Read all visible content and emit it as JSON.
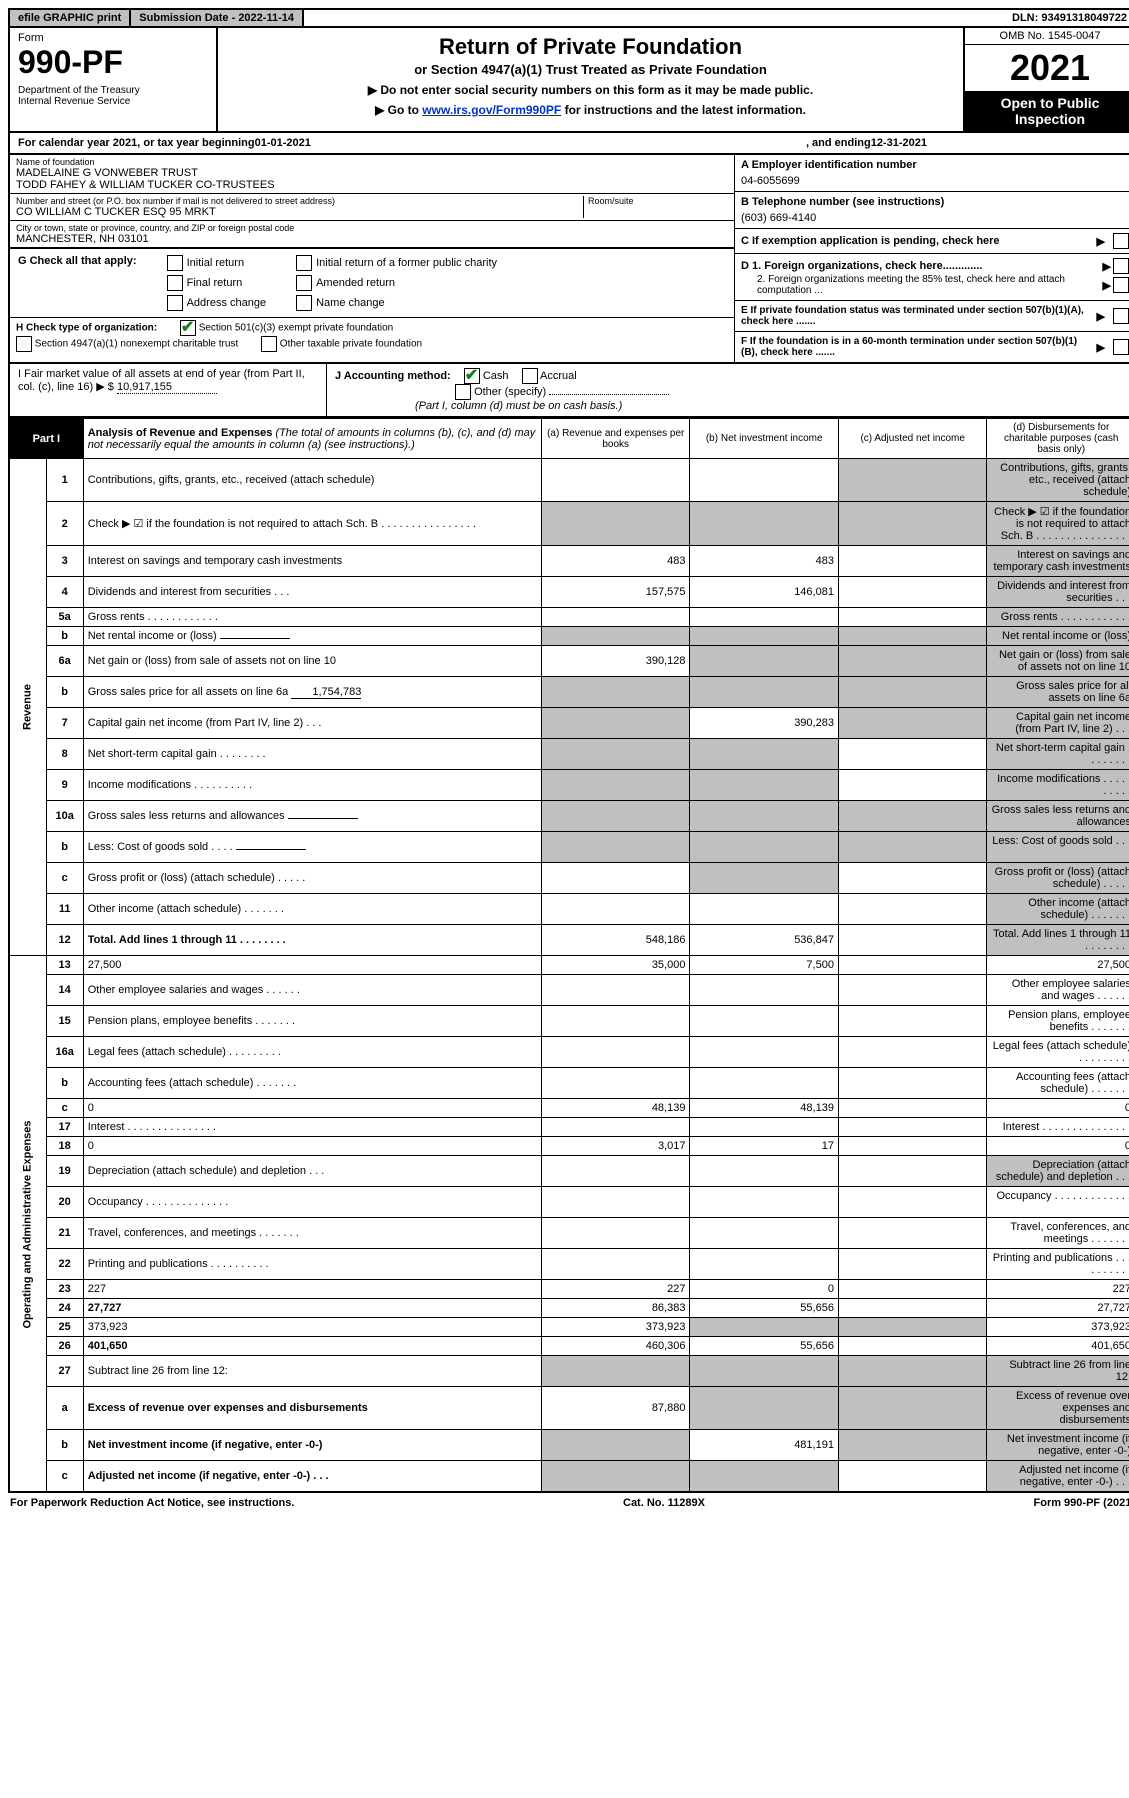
{
  "top": {
    "efile": "efile GRAPHIC print",
    "submission": "Submission Date - 2022-11-14",
    "dln": "DLN: 93491318049722"
  },
  "header": {
    "form": "Form",
    "formnum": "990-PF",
    "dept": "Department of the Treasury",
    "irs": "Internal Revenue Service",
    "title": "Return of Private Foundation",
    "sub": "or Section 4947(a)(1) Trust Treated as Private Foundation",
    "warn": "▶ Do not enter social security numbers on this form as it may be made public.",
    "goto": "▶ Go to ",
    "link": "www.irs.gov/Form990PF",
    "goto2": " for instructions and the latest information.",
    "omb": "OMB No. 1545-0047",
    "year": "2021",
    "open": "Open to Public Inspection"
  },
  "calyear": {
    "pre": "For calendar year 2021, or tax year beginning ",
    "begin": "01-01-2021",
    "mid": ", and ending ",
    "end": "12-31-2021"
  },
  "ident": {
    "name_lbl": "Name of foundation",
    "name1": "MADELAINE G VONWEBER TRUST",
    "name2": "TODD FAHEY & WILLIAM TUCKER CO-TRUSTEES",
    "addr_lbl": "Number and street (or P.O. box number if mail is not delivered to street address)",
    "addr": "CO WILLIAM C TUCKER ESQ 95 MRKT",
    "room_lbl": "Room/suite",
    "city_lbl": "City or town, state or province, country, and ZIP or foreign postal code",
    "city": "MANCHESTER, NH  03101",
    "ein_lbl": "A Employer identification number",
    "ein": "04-6055699",
    "tel_lbl": "B Telephone number (see instructions)",
    "tel": "(603) 669-4140",
    "c": "C If exemption application is pending, check here",
    "d1": "D 1. Foreign organizations, check here.............",
    "d2": "2. Foreign organizations meeting the 85% test, check here and attach computation ...",
    "e": "E  If private foundation status was terminated under section 507(b)(1)(A), check here .......",
    "f": "F  If the foundation is in a 60-month termination under section 507(b)(1)(B), check here .......",
    "g": "G Check all that apply:",
    "g_opts": [
      "Initial return",
      "Initial return of a former public charity",
      "Final return",
      "Amended return",
      "Address change",
      "Name change"
    ],
    "h": "H Check type of organization:",
    "h1": "Section 501(c)(3) exempt private foundation",
    "h2": "Section 4947(a)(1) nonexempt charitable trust",
    "h3": "Other taxable private foundation",
    "i": "I Fair market value of all assets at end of year (from Part II, col. (c), line 16) ▶ $",
    "i_val": "10,917,155",
    "j": "J Accounting method:",
    "j_cash": "Cash",
    "j_accr": "Accrual",
    "j_other": "Other (specify)",
    "j_note": "(Part I, column (d) must be on cash basis.)"
  },
  "part1": {
    "label": "Part I",
    "title": "Analysis of Revenue and Expenses",
    "note": " (The total of amounts in columns (b), (c), and (d) may not necessarily equal the amounts in column (a) (see instructions).)",
    "cols": {
      "a": "(a)   Revenue and expenses per books",
      "b": "(b)   Net investment income",
      "c": "(c)   Adjusted net income",
      "d": "(d)   Disbursements for charitable purposes (cash basis only)"
    }
  },
  "rows": [
    {
      "n": "1",
      "d": "Contributions, gifts, grants, etc., received (attach schedule)",
      "a": "",
      "b": "",
      "shade": [
        "c",
        "d"
      ]
    },
    {
      "n": "2",
      "d": "Check ▶ ☑ if the foundation is not required to attach Sch. B      .   .   .   .   .   .   .   .   .   .   .   .   .   .   .   .",
      "shade": [
        "a",
        "b",
        "c",
        "d"
      ]
    },
    {
      "n": "3",
      "d": "Interest on savings and temporary cash investments",
      "a": "483",
      "b": "483",
      "shade": [
        "d"
      ]
    },
    {
      "n": "4",
      "d": "Dividends and interest from securities      .   .   .",
      "a": "157,575",
      "b": "146,081",
      "shade": [
        "d"
      ]
    },
    {
      "n": "5a",
      "d": "Gross rents         .   .   .   .   .   .   .   .   .   .   .   .",
      "shade": [
        "d"
      ]
    },
    {
      "n": "b",
      "d": "Net rental income or (loss)",
      "under": "",
      "shade": [
        "a",
        "b",
        "c",
        "d"
      ]
    },
    {
      "n": "6a",
      "d": "Net gain or (loss) from sale of assets not on line 10",
      "a": "390,128",
      "shade": [
        "b",
        "c",
        "d"
      ]
    },
    {
      "n": "b",
      "d": "Gross sales price for all assets on line 6a",
      "under": "1,754,783",
      "shade": [
        "a",
        "b",
        "c",
        "d"
      ]
    },
    {
      "n": "7",
      "d": "Capital gain net income (from Part IV, line 2)     .   .   .",
      "b": "390,283",
      "shade": [
        "a",
        "c",
        "d"
      ]
    },
    {
      "n": "8",
      "d": "Net short-term capital gain    .   .   .   .   .   .   .   .",
      "shade": [
        "a",
        "b",
        "d"
      ]
    },
    {
      "n": "9",
      "d": "Income modifications  .   .   .   .   .   .   .   .   .   .",
      "shade": [
        "a",
        "b",
        "d"
      ]
    },
    {
      "n": "10a",
      "d": "Gross sales less returns and allowances",
      "under": "",
      "shade": [
        "a",
        "b",
        "c",
        "d"
      ]
    },
    {
      "n": "b",
      "d": "Less: Cost of goods sold      .   .   .   .",
      "under": "",
      "shade": [
        "a",
        "b",
        "c",
        "d"
      ]
    },
    {
      "n": "c",
      "d": "Gross profit or (loss) (attach schedule)      .   .   .   .   .",
      "shade": [
        "b",
        "d"
      ]
    },
    {
      "n": "11",
      "d": "Other income (attach schedule)     .   .   .   .   .   .   .",
      "shade": [
        "d"
      ]
    },
    {
      "n": "12",
      "d": "Total. Add lines 1 through 11    .   .   .   .   .   .   .   .",
      "bold": true,
      "a": "548,186",
      "b": "536,847",
      "shade": [
        "d"
      ]
    },
    {
      "n": "13",
      "d": "27,500",
      "a": "35,000",
      "b": "7,500"
    },
    {
      "n": "14",
      "d": "Other employee salaries and wages     .   .   .   .   .   ."
    },
    {
      "n": "15",
      "d": "Pension plans, employee benefits   .   .   .   .   .   .   ."
    },
    {
      "n": "16a",
      "d": "Legal fees (attach schedule)  .   .   .   .   .   .   .   .   ."
    },
    {
      "n": "b",
      "d": "Accounting fees (attach schedule)  .   .   .   .   .   .   ."
    },
    {
      "n": "c",
      "d": "0",
      "a": "48,139",
      "b": "48,139"
    },
    {
      "n": "17",
      "d": "Interest  .   .   .   .   .   .   .   .   .   .   .   .   .   .   ."
    },
    {
      "n": "18",
      "d": "0",
      "a": "3,017",
      "b": "17"
    },
    {
      "n": "19",
      "d": "Depreciation (attach schedule) and depletion     .   .   .",
      "shade": [
        "d"
      ]
    },
    {
      "n": "20",
      "d": "Occupancy  .   .   .   .   .   .   .   .   .   .   .   .   .   ."
    },
    {
      "n": "21",
      "d": "Travel, conferences, and meetings  .   .   .   .   .   .   ."
    },
    {
      "n": "22",
      "d": "Printing and publications  .   .   .   .   .   .   .   .   .   ."
    },
    {
      "n": "23",
      "d": "227",
      "a": "227",
      "b": "0"
    },
    {
      "n": "24",
      "d": "27,727",
      "bold": true,
      "a": "86,383",
      "b": "55,656"
    },
    {
      "n": "25",
      "d": "373,923",
      "a": "373,923",
      "shade": [
        "b",
        "c"
      ]
    },
    {
      "n": "26",
      "d": "401,650",
      "bold": true,
      "a": "460,306",
      "b": "55,656"
    },
    {
      "n": "27",
      "d": "Subtract line 26 from line 12:",
      "shade": [
        "a",
        "b",
        "c",
        "d"
      ]
    },
    {
      "n": "a",
      "d": "Excess of revenue over expenses and disbursements",
      "bold": true,
      "a": "87,880",
      "shade": [
        "b",
        "c",
        "d"
      ]
    },
    {
      "n": "b",
      "d": "Net investment income (if negative, enter -0-)",
      "bold": true,
      "b": "481,191",
      "shade": [
        "a",
        "c",
        "d"
      ]
    },
    {
      "n": "c",
      "d": "Adjusted net income (if negative, enter -0-)    .   .   .",
      "bold": true,
      "shade": [
        "a",
        "b",
        "d"
      ]
    }
  ],
  "vlabels": {
    "rev": "Revenue",
    "exp": "Operating and Administrative Expenses"
  },
  "footer": {
    "left": "For Paperwork Reduction Act Notice, see instructions.",
    "mid": "Cat. No. 11289X",
    "right": "Form 990-PF (2021)"
  },
  "colors": {
    "shade": "#c0c0c0",
    "link": "#0033cc",
    "check": "#1a7a1a"
  }
}
